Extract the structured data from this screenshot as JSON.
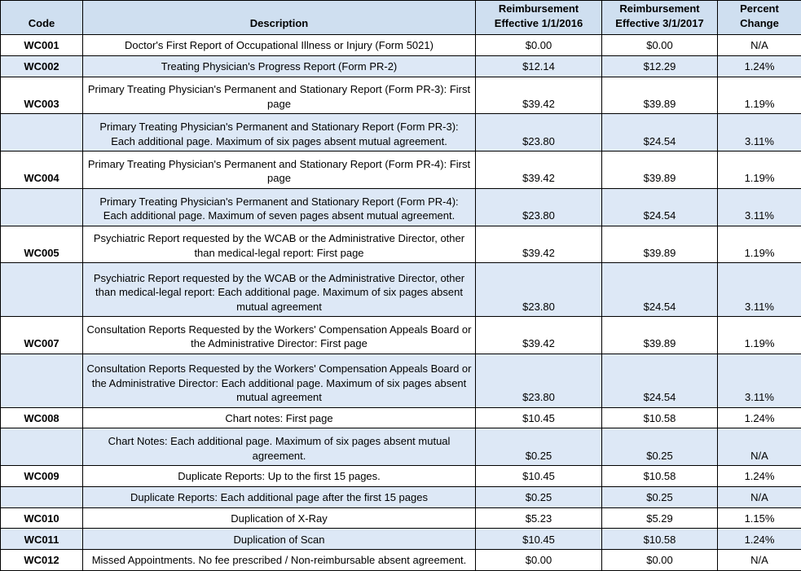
{
  "table": {
    "columns": [
      "Code",
      "Description",
      "Reimbursement\nEffective 1/1/2016",
      "Reimbursement\nEffective 3/1/2017",
      "Percent\nChange"
    ],
    "colors": {
      "header_bg": "#cfdff0",
      "stripe_bg": "#dde8f6",
      "border": "#000000"
    },
    "rows": [
      {
        "code": "WC001",
        "description": "Doctor's First Report of Occupational Illness or Injury (Form 5021)",
        "r2016": "$0.00",
        "r2017": "$0.00",
        "change": "N/A",
        "shaded": false
      },
      {
        "code": "WC002",
        "description": "Treating Physician's Progress Report (Form PR-2)",
        "r2016": "$12.14",
        "r2017": "$12.29",
        "change": "1.24%",
        "shaded": true
      },
      {
        "code": "WC003",
        "description": "Primary Treating Physician's Permanent and Stationary Report (Form PR-3): First page",
        "r2016": "$39.42",
        "r2017": "$39.89",
        "change": "1.19%",
        "shaded": false
      },
      {
        "code": "",
        "description": "Primary Treating Physician's Permanent and Stationary Report (Form PR-3): Each additional page. Maximum of six pages absent mutual agreement.",
        "r2016": "$23.80",
        "r2017": "$24.54",
        "change": "3.11%",
        "shaded": true
      },
      {
        "code": "WC004",
        "description": "Primary Treating Physician's Permanent and Stationary Report (Form PR-4): First page",
        "r2016": "$39.42",
        "r2017": "$39.89",
        "change": "1.19%",
        "shaded": false
      },
      {
        "code": "",
        "description": "Primary Treating Physician's Permanent and Stationary Report (Form PR-4): Each additional page. Maximum of seven pages absent mutual agreement.",
        "r2016": "$23.80",
        "r2017": "$24.54",
        "change": "3.11%",
        "shaded": true
      },
      {
        "code": "WC005",
        "description": "Psychiatric Report requested by the WCAB or the Administrative Director, other than medical-legal report: First page",
        "r2016": "$39.42",
        "r2017": "$39.89",
        "change": "1.19%",
        "shaded": false
      },
      {
        "code": "",
        "description": "Psychiatric Report requested by the WCAB or the Administrative Director, other than medical-legal report: Each additional page. Maximum of six pages absent mutual agreement",
        "r2016": "$23.80",
        "r2017": "$24.54",
        "change": "3.11%",
        "shaded": true
      },
      {
        "code": "WC007",
        "description": "Consultation Reports Requested by the Workers' Compensation Appeals Board or the Administrative Director: First page",
        "r2016": "$39.42",
        "r2017": "$39.89",
        "change": "1.19%",
        "shaded": false
      },
      {
        "code": "",
        "description": "Consultation Reports Requested by the Workers' Compensation Appeals Board or the Administrative Director: Each additional page. Maximum of six pages absent mutual agreement",
        "r2016": "$23.80",
        "r2017": "$24.54",
        "change": "3.11%",
        "shaded": true
      },
      {
        "code": "WC008",
        "description": "Chart notes: First page",
        "r2016": "$10.45",
        "r2017": "$10.58",
        "change": "1.24%",
        "shaded": false
      },
      {
        "code": "",
        "description": "Chart Notes: Each additional page. Maximum of six pages absent mutual agreement.",
        "r2016": "$0.25",
        "r2017": "$0.25",
        "change": "N/A",
        "shaded": true
      },
      {
        "code": "WC009",
        "description": "Duplicate Reports: Up to the first 15 pages.",
        "r2016": "$10.45",
        "r2017": "$10.58",
        "change": "1.24%",
        "shaded": false
      },
      {
        "code": "",
        "description": "Duplicate Reports: Each additional page after the first 15 pages",
        "r2016": "$0.25",
        "r2017": "$0.25",
        "change": "N/A",
        "shaded": true
      },
      {
        "code": "WC010",
        "description": "Duplication of X-Ray",
        "r2016": "$5.23",
        "r2017": "$5.29",
        "change": "1.15%",
        "shaded": false
      },
      {
        "code": "WC011",
        "description": "Duplication of Scan",
        "r2016": "$10.45",
        "r2017": "$10.58",
        "change": "1.24%",
        "shaded": true
      },
      {
        "code": "WC012",
        "description": "Missed Appointments. No fee prescribed / Non-reimbursable absent agreement.",
        "r2016": "$0.00",
        "r2017": "$0.00",
        "change": "N/A",
        "shaded": false
      }
    ]
  }
}
